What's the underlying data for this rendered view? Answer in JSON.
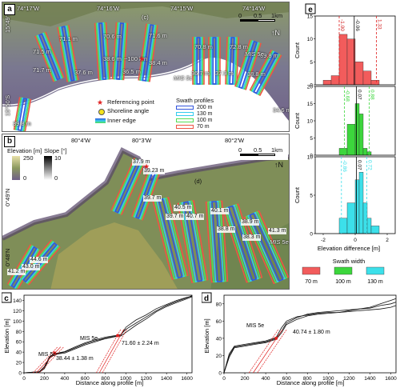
{
  "panel_a": {
    "label": "a",
    "lon_ticks": [
      "74°17'W",
      "74°16'W",
      "74°15'W",
      "74°14'W"
    ],
    "lat_ticks": [
      "15°49'S",
      "15°50'S"
    ],
    "profile_ref": "(c)",
    "elevation_labels": [
      "71.1 m",
      "70.6 m",
      "71.6 m",
      "71.5 m",
      "38.6 m",
      "38.4 m",
      "71.7 m",
      "37.6 m",
      "36.5 m",
      "39.8 m",
      "70.8 m",
      "72.8 m",
      "69.8 m",
      "36.7 m",
      "37.9 m",
      "38.8 m",
      "34.6 m"
    ],
    "mis_labels": [
      "MIS 5e",
      "MIS 5c"
    ],
    "distance_label": "~100 km",
    "scale_labels": [
      "0",
      "0.5",
      "1km"
    ],
    "legend": {
      "referencing_point": "Referencing point",
      "shoreline_angle": "Shoreline angle",
      "inner_edge": "Inner edge",
      "swath_title": "Swath profiles",
      "swath_items": [
        {
          "label": "200 m",
          "color": "#3355dd"
        },
        {
          "label": "130 m",
          "color": "#33ccee"
        },
        {
          "label": "100 m",
          "color": "#55dd55"
        },
        {
          "label": "70 m",
          "color": "#ee5544"
        }
      ]
    }
  },
  "panel_b": {
    "label": "b",
    "lon_ticks": [
      "80°4'W",
      "80°3'W",
      "80°2'W"
    ],
    "lat_ticks": [
      "0°49'N",
      "0°48'N"
    ],
    "profile_ref": "(d)",
    "elevation_labels": [
      "37.9 m",
      "39.23 m",
      "39.7 m",
      "40.5 m",
      "39.7 m",
      "40.7 m",
      "40.1 m",
      "38.8 m",
      "38.9 m",
      "38.3 m",
      "41.3 m",
      "43.0 m",
      "41.2 m",
      "44.6 m"
    ],
    "mis_label": "MIS 5e",
    "elevation_colorbar": {
      "title": "Elevation [m]",
      "max": "250",
      "min": "0"
    },
    "slope_colorbar": {
      "title": "Slope [°]",
      "max": "10",
      "min": "0"
    },
    "scale_labels": [
      "0",
      "0.5",
      "1km"
    ]
  },
  "panel_c": {
    "label": "c",
    "ylabel": "Elevation [m]",
    "xlabel": "Distance along profile [m]",
    "y_ticks": [
      "0",
      "20",
      "40",
      "60",
      "80",
      "100",
      "120",
      "140"
    ],
    "x_ticks": [
      "0",
      "200",
      "400",
      "600",
      "800",
      "1000",
      "1200",
      "1400",
      "1600"
    ],
    "annotations": [
      "MIS 5e",
      "MIS 5c",
      "71.60 ± 2.24 m",
      "38.44 ± 1.38 m"
    ]
  },
  "panel_d": {
    "label": "d",
    "ylabel": "Elevation [m]",
    "xlabel": "Distance along profile [m]",
    "y_ticks": [
      "0",
      "20",
      "40",
      "60",
      "80"
    ],
    "x_ticks": [
      "0",
      "200",
      "400",
      "600",
      "800",
      "1000",
      "1200",
      "1400",
      "1600"
    ],
    "annotations": [
      "MIS 5e",
      "40.74 ± 1.80 m"
    ]
  },
  "panel_e": {
    "label": "e",
    "ylabel": "Count",
    "xlabel": "Elevation difference [m]",
    "x_ticks": [
      "-2",
      "0",
      "2"
    ],
    "legend_title": "Swath width",
    "legend_items": [
      {
        "label": "70 m",
        "color": "#f25c5c"
      },
      {
        "label": "100 m",
        "color": "#3cd63c"
      },
      {
        "label": "130 m",
        "color": "#3ce0ea"
      }
    ]
  },
  "chart_data": [
    {
      "type": "line",
      "panel": "c",
      "xlabel": "Distance along profile [m]",
      "ylabel": "Elevation [m]",
      "xlim": [
        0,
        1650
      ],
      "ylim": [
        0,
        150
      ],
      "series": [
        {
          "x": [
            0,
            150,
            200,
            250,
            300,
            350,
            400,
            500,
            600,
            700,
            800,
            900,
            950,
            1000,
            1100,
            1200,
            1300,
            1400,
            1500,
            1600,
            1650
          ],
          "y": [
            0,
            2,
            10,
            30,
            36,
            38,
            40,
            48,
            56,
            62,
            67,
            71,
            72,
            88,
            102,
            112,
            124,
            132,
            140,
            146,
            148
          ]
        },
        {
          "x": [
            0,
            150,
            200,
            250,
            300,
            350,
            400,
            500,
            600,
            700,
            800,
            900,
            950,
            1000,
            1100,
            1200,
            1300,
            1400,
            1500,
            1600,
            1650
          ],
          "y": [
            0,
            2,
            12,
            31,
            37,
            39,
            41,
            50,
            58,
            64,
            69,
            72,
            74,
            84,
            96,
            108,
            120,
            130,
            138,
            145,
            149
          ]
        },
        {
          "x": [
            0,
            150,
            200,
            250,
            300,
            350,
            400,
            500,
            600,
            700,
            800,
            900,
            950,
            1000,
            1100,
            1200,
            1300,
            1400,
            1500,
            1600,
            1650
          ],
          "y": [
            0,
            1,
            8,
            28,
            35,
            37,
            38,
            46,
            54,
            60,
            66,
            70,
            71,
            78,
            92,
            104,
            118,
            128,
            136,
            143,
            147
          ]
        }
      ]
    },
    {
      "type": "line",
      "panel": "d",
      "xlabel": "Distance along profile [m]",
      "ylabel": "Elevation [m]",
      "xlim": [
        0,
        1650
      ],
      "ylim": [
        0,
        90
      ],
      "series": [
        {
          "x": [
            0,
            50,
            100,
            200,
            300,
            400,
            500,
            550,
            600,
            700,
            800,
            900,
            1000,
            1100,
            1200,
            1300,
            1400,
            1500,
            1600,
            1650
          ],
          "y": [
            0,
            20,
            30,
            32,
            34,
            36,
            40,
            48,
            58,
            64,
            68,
            70,
            71,
            72,
            73,
            74,
            75,
            78,
            80,
            82
          ]
        },
        {
          "x": [
            0,
            50,
            100,
            200,
            300,
            400,
            500,
            550,
            600,
            700,
            800,
            900,
            1000,
            1100,
            1200,
            1300,
            1400,
            1500,
            1600,
            1650
          ],
          "y": [
            0,
            22,
            31,
            33,
            35,
            37,
            41,
            52,
            60,
            65,
            67,
            69,
            70,
            70,
            72,
            74,
            76,
            80,
            84,
            86
          ]
        },
        {
          "x": [
            0,
            50,
            100,
            200,
            300,
            400,
            500,
            550,
            600,
            700,
            800,
            900,
            1000,
            1100,
            1200,
            1300,
            1400,
            1500,
            1600,
            1650
          ],
          "y": [
            0,
            18,
            29,
            31,
            33,
            35,
            39,
            46,
            56,
            62,
            66,
            68,
            69,
            70,
            71,
            72,
            73,
            74,
            76,
            78
          ]
        }
      ]
    },
    {
      "type": "bar",
      "panel": "e",
      "subplots": [
        {
          "name": "70 m",
          "color": "#f25c5c",
          "bin_edges": [
            -2,
            -1.5,
            -1,
            -0.5,
            0,
            0.5,
            1,
            1.5,
            2
          ],
          "counts": [
            1,
            2,
            11,
            10,
            5,
            3,
            1,
            0
          ],
          "ylim": [
            0,
            15
          ],
          "y_ticks": [
            0,
            5,
            10,
            15
          ],
          "lines": [
            {
              "value": -1.0,
              "label": "-1.00"
            },
            {
              "value": -0.06,
              "label": "-0.06"
            },
            {
              "value": 1.33,
              "label": "1.33"
            }
          ]
        },
        {
          "name": "100 m",
          "color": "#3cd63c",
          "bin_edges": [
            -2,
            -1.5,
            -1,
            -0.5,
            0,
            0.25,
            0.5,
            0.75,
            1,
            1.5,
            2
          ],
          "counts": [
            0,
            0,
            2,
            9,
            15,
            12,
            2,
            1,
            0,
            0
          ],
          "ylim": [
            0,
            20
          ],
          "y_ticks": [
            0,
            5,
            10,
            15,
            20
          ],
          "lines": [
            {
              "value": -0.68,
              "label": "-0.68"
            },
            {
              "value": 0.07,
              "label": "0.07"
            },
            {
              "value": 0.88,
              "label": "0.88"
            }
          ]
        },
        {
          "name": "130 m",
          "color": "#3ce0ea",
          "bin_edges": [
            -2,
            -1.5,
            -1,
            -0.5,
            0,
            0.25,
            0.5,
            0.75,
            1,
            1.5,
            2
          ],
          "counts": [
            0,
            0,
            2,
            4,
            7,
            8,
            4,
            2,
            1,
            0
          ],
          "ylim": [
            0,
            10
          ],
          "y_ticks": [
            0,
            5,
            10
          ],
          "lines": [
            {
              "value": -0.86,
              "label": "-0.86"
            },
            {
              "value": 0.07,
              "label": "0.07"
            },
            {
              "value": 0.72,
              "label": "0.72"
            }
          ]
        }
      ],
      "xlim": [
        -2.5,
        2.5
      ]
    }
  ]
}
